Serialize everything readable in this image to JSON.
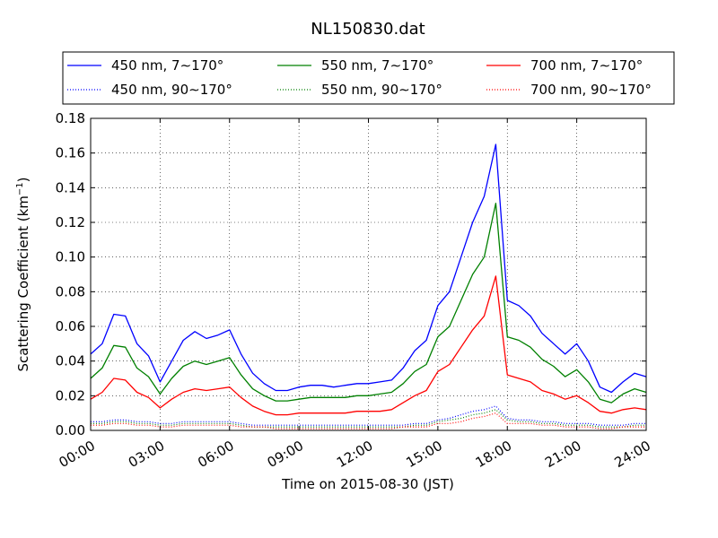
{
  "chart_data": {
    "type": "line",
    "title": "NL150830.dat",
    "xlabel": "Time on 2015-08-30 (JST)",
    "ylabel": "Scattering Coefficient (km",
    "ylabel_sup": "−1",
    "ylabel_end": ")",
    "xlim": [
      "00:00",
      "24:00"
    ],
    "ylim": [
      0,
      0.18
    ],
    "x_ticks": [
      "00:00",
      "03:00",
      "06:00",
      "09:00",
      "12:00",
      "15:00",
      "18:00",
      "21:00",
      "24:00"
    ],
    "y_ticks": [
      "0.00",
      "0.02",
      "0.04",
      "0.06",
      "0.08",
      "0.10",
      "0.12",
      "0.14",
      "0.16",
      "0.18"
    ],
    "grid": true,
    "legend_placement": "top, above plot, 3 columns",
    "x_hours": [
      0,
      0.5,
      1,
      1.5,
      2,
      2.5,
      3,
      3.5,
      4,
      4.5,
      5,
      5.5,
      6,
      6.5,
      7,
      7.5,
      8,
      8.5,
      9,
      9.5,
      10,
      10.5,
      11,
      11.5,
      12,
      12.5,
      13,
      13.5,
      14,
      14.5,
      15,
      15.5,
      16,
      16.5,
      17,
      17.5,
      18,
      18.5,
      19,
      19.5,
      20,
      20.5,
      21,
      21.5,
      22,
      22.5,
      23,
      23.5,
      24
    ],
    "series": [
      {
        "name": "450 nm, 7∼170°",
        "color": "#0000ff",
        "style": "solid",
        "values": [
          0.044,
          0.05,
          0.067,
          0.066,
          0.05,
          0.043,
          0.028,
          0.04,
          0.052,
          0.057,
          0.053,
          0.055,
          0.058,
          0.044,
          0.033,
          0.027,
          0.023,
          0.023,
          0.025,
          0.026,
          0.026,
          0.025,
          0.026,
          0.027,
          0.027,
          0.028,
          0.029,
          0.036,
          0.046,
          0.052,
          0.072,
          0.08,
          0.1,
          0.12,
          0.135,
          0.165,
          0.075,
          0.072,
          0.066,
          0.056,
          0.05,
          0.044,
          0.05,
          0.04,
          0.025,
          0.022,
          0.028,
          0.033,
          0.031
        ]
      },
      {
        "name": "550 nm, 7∼170°",
        "color": "#008000",
        "style": "solid",
        "values": [
          0.03,
          0.036,
          0.049,
          0.048,
          0.036,
          0.031,
          0.021,
          0.03,
          0.037,
          0.04,
          0.038,
          0.04,
          0.042,
          0.032,
          0.024,
          0.02,
          0.017,
          0.017,
          0.018,
          0.019,
          0.019,
          0.019,
          0.019,
          0.02,
          0.02,
          0.021,
          0.022,
          0.027,
          0.034,
          0.038,
          0.054,
          0.06,
          0.075,
          0.09,
          0.1,
          0.131,
          0.054,
          0.052,
          0.048,
          0.041,
          0.037,
          0.031,
          0.035,
          0.028,
          0.018,
          0.016,
          0.021,
          0.024,
          0.022
        ]
      },
      {
        "name": "700 nm, 7∼170°",
        "color": "#ff0000",
        "style": "solid",
        "values": [
          0.018,
          0.022,
          0.03,
          0.029,
          0.022,
          0.019,
          0.013,
          0.018,
          0.022,
          0.024,
          0.023,
          0.024,
          0.025,
          0.019,
          0.014,
          0.011,
          0.009,
          0.009,
          0.01,
          0.01,
          0.01,
          0.01,
          0.01,
          0.011,
          0.011,
          0.011,
          0.012,
          0.016,
          0.02,
          0.023,
          0.034,
          0.038,
          0.048,
          0.058,
          0.066,
          0.089,
          0.032,
          0.03,
          0.028,
          0.023,
          0.021,
          0.018,
          0.02,
          0.016,
          0.011,
          0.01,
          0.012,
          0.013,
          0.012
        ]
      },
      {
        "name": "450 nm, 90∼170°",
        "color": "#0000ff",
        "style": "dotted",
        "values": [
          0.005,
          0.005,
          0.006,
          0.006,
          0.005,
          0.005,
          0.004,
          0.004,
          0.005,
          0.005,
          0.005,
          0.005,
          0.005,
          0.004,
          0.003,
          0.003,
          0.003,
          0.003,
          0.003,
          0.003,
          0.003,
          0.003,
          0.003,
          0.003,
          0.003,
          0.003,
          0.003,
          0.003,
          0.004,
          0.004,
          0.006,
          0.007,
          0.009,
          0.011,
          0.012,
          0.014,
          0.007,
          0.006,
          0.006,
          0.005,
          0.005,
          0.004,
          0.004,
          0.004,
          0.003,
          0.003,
          0.003,
          0.004,
          0.004
        ]
      },
      {
        "name": "550 nm, 90∼170°",
        "color": "#008000",
        "style": "dotted",
        "values": [
          0.004,
          0.004,
          0.005,
          0.005,
          0.004,
          0.004,
          0.003,
          0.003,
          0.004,
          0.004,
          0.004,
          0.004,
          0.004,
          0.003,
          0.002,
          0.002,
          0.002,
          0.002,
          0.002,
          0.002,
          0.002,
          0.002,
          0.002,
          0.002,
          0.002,
          0.002,
          0.002,
          0.002,
          0.003,
          0.003,
          0.005,
          0.006,
          0.007,
          0.009,
          0.01,
          0.012,
          0.006,
          0.005,
          0.005,
          0.004,
          0.004,
          0.003,
          0.003,
          0.003,
          0.002,
          0.002,
          0.002,
          0.003,
          0.003
        ]
      },
      {
        "name": "700 nm, 90∼170°",
        "color": "#ff0000",
        "style": "dotted",
        "values": [
          0.003,
          0.003,
          0.004,
          0.004,
          0.003,
          0.003,
          0.002,
          0.002,
          0.003,
          0.003,
          0.003,
          0.003,
          0.003,
          0.002,
          0.002,
          0.002,
          0.001,
          0.001,
          0.001,
          0.001,
          0.001,
          0.001,
          0.001,
          0.001,
          0.001,
          0.001,
          0.001,
          0.002,
          0.002,
          0.002,
          0.004,
          0.004,
          0.005,
          0.007,
          0.008,
          0.01,
          0.004,
          0.004,
          0.004,
          0.003,
          0.003,
          0.002,
          0.002,
          0.002,
          0.001,
          0.001,
          0.002,
          0.002,
          0.002
        ]
      }
    ]
  }
}
